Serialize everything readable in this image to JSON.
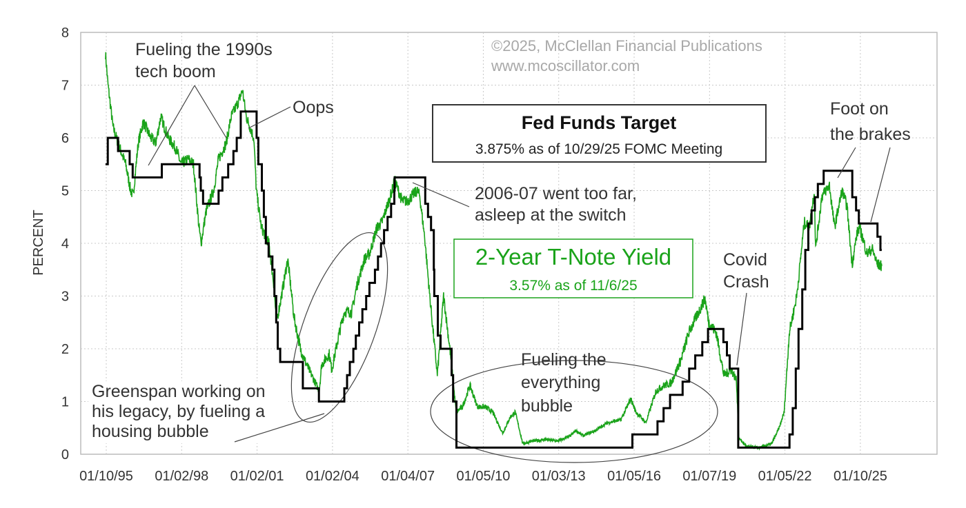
{
  "chart_data": {
    "type": "line",
    "title": "Fed Funds Target",
    "ylabel": "PERCENT",
    "xlabel": "",
    "ylim": [
      0,
      8
    ],
    "xlim": [
      1994.6,
      2028.6
    ],
    "grid": true,
    "yticks": [
      "0",
      "1",
      "2",
      "3",
      "4",
      "5",
      "6",
      "7",
      "8"
    ],
    "xticks": [
      {
        "label": "01/10/95",
        "year": 1995.03
      },
      {
        "label": "01/02/98",
        "year": 1998.03
      },
      {
        "label": "01/02/01",
        "year": 2001.03
      },
      {
        "label": "01/02/04",
        "year": 2004.03
      },
      {
        "label": "01/04/07",
        "year": 2007.03
      },
      {
        "label": "01/05/10",
        "year": 2010.03
      },
      {
        "label": "01/03/13",
        "year": 2013.03
      },
      {
        "label": "01/05/16",
        "year": 2016.03
      },
      {
        "label": "01/07/19",
        "year": 2019.03
      },
      {
        "label": "01/05/22",
        "year": 2022.03
      },
      {
        "label": "01/10/25",
        "year": 2025.03
      }
    ],
    "copyright": [
      "©2025, McClellan Financial Publications",
      "www.mcoscillator.com"
    ],
    "legend": {
      "fed": {
        "title": "Fed Funds Target",
        "subtitle": "3.875% as of 10/29/25 FOMC Meeting",
        "color": "#000000"
      },
      "yield": {
        "title": "2-Year T-Note Yield",
        "subtitle": "3.57% as of 11/6/25",
        "color": "#1aa31a"
      }
    },
    "annotations": {
      "tech_boom": [
        "Fueling the 1990s",
        "tech boom"
      ],
      "oops": "Oops",
      "too_far": [
        "2006-07 went too far,",
        "asleep at the switch"
      ],
      "covid": [
        "Covid",
        "Crash"
      ],
      "brakes": [
        "Foot on",
        "the brakes"
      ],
      "everything": [
        "Fueling the",
        "everything",
        "bubble"
      ],
      "greenspan": [
        "Greenspan working on",
        "his legacy, by fueling a",
        "housing bubble"
      ]
    },
    "series": [
      {
        "name": "Fed Funds Target",
        "color": "#000000",
        "steps": [
          [
            1995.0,
            5.5
          ],
          [
            1995.09,
            6.0
          ],
          [
            1995.5,
            5.75
          ],
          [
            1995.96,
            5.5
          ],
          [
            1996.08,
            5.25
          ],
          [
            1997.24,
            5.5
          ],
          [
            1998.74,
            5.25
          ],
          [
            1998.79,
            5.0
          ],
          [
            1998.88,
            4.75
          ],
          [
            1999.5,
            5.0
          ],
          [
            1999.65,
            5.25
          ],
          [
            1999.88,
            5.5
          ],
          [
            2000.09,
            5.75
          ],
          [
            2000.22,
            6.0
          ],
          [
            2000.38,
            6.5
          ],
          [
            2001.01,
            6.0
          ],
          [
            2001.08,
            5.5
          ],
          [
            2001.22,
            5.0
          ],
          [
            2001.3,
            4.5
          ],
          [
            2001.38,
            4.0
          ],
          [
            2001.49,
            3.75
          ],
          [
            2001.64,
            3.5
          ],
          [
            2001.72,
            3.0
          ],
          [
            2001.79,
            2.5
          ],
          [
            2001.85,
            2.0
          ],
          [
            2001.95,
            1.75
          ],
          [
            2002.85,
            1.25
          ],
          [
            2003.49,
            1.0
          ],
          [
            2004.5,
            1.25
          ],
          [
            2004.61,
            1.5
          ],
          [
            2004.72,
            1.75
          ],
          [
            2004.86,
            2.0
          ],
          [
            2004.96,
            2.25
          ],
          [
            2005.09,
            2.5
          ],
          [
            2005.22,
            2.75
          ],
          [
            2005.37,
            3.0
          ],
          [
            2005.5,
            3.25
          ],
          [
            2005.72,
            3.5
          ],
          [
            2005.84,
            3.75
          ],
          [
            2005.96,
            4.0
          ],
          [
            2006.08,
            4.25
          ],
          [
            2006.22,
            4.5
          ],
          [
            2006.36,
            4.75
          ],
          [
            2006.49,
            5.0
          ],
          [
            2006.5,
            5.25
          ],
          [
            2007.72,
            4.75
          ],
          [
            2007.83,
            4.5
          ],
          [
            2007.95,
            4.25
          ],
          [
            2008.06,
            3.5
          ],
          [
            2008.08,
            3.0
          ],
          [
            2008.22,
            2.25
          ],
          [
            2008.33,
            2.0
          ],
          [
            2008.77,
            1.5
          ],
          [
            2008.83,
            1.0
          ],
          [
            2008.96,
            0.125
          ],
          [
            2015.96,
            0.375
          ],
          [
            2016.96,
            0.625
          ],
          [
            2017.2,
            0.875
          ],
          [
            2017.46,
            1.125
          ],
          [
            2017.96,
            1.375
          ],
          [
            2018.22,
            1.625
          ],
          [
            2018.46,
            1.875
          ],
          [
            2018.74,
            2.125
          ],
          [
            2018.97,
            2.375
          ],
          [
            2019.58,
            2.125
          ],
          [
            2019.72,
            1.875
          ],
          [
            2019.83,
            1.625
          ],
          [
            2020.17,
            0.125
          ],
          [
            2022.21,
            0.375
          ],
          [
            2022.34,
            0.875
          ],
          [
            2022.46,
            1.625
          ],
          [
            2022.57,
            2.375
          ],
          [
            2022.72,
            3.125
          ],
          [
            2022.84,
            3.875
          ],
          [
            2022.96,
            4.375
          ],
          [
            2023.09,
            4.625
          ],
          [
            2023.22,
            4.875
          ],
          [
            2023.34,
            5.125
          ],
          [
            2023.57,
            5.375
          ],
          [
            2024.71,
            4.875
          ],
          [
            2024.86,
            4.625
          ],
          [
            2024.97,
            4.375
          ],
          [
            2025.71,
            4.125
          ],
          [
            2025.83,
            3.875
          ],
          [
            2025.88,
            3.875
          ]
        ]
      },
      {
        "name": "2-Year T-Note Yield",
        "color": "#1aa31a",
        "points": [
          [
            1995.0,
            7.6
          ],
          [
            1995.1,
            7.0
          ],
          [
            1995.3,
            6.2
          ],
          [
            1995.5,
            5.9
          ],
          [
            1995.8,
            5.5
          ],
          [
            1996.0,
            5.0
          ],
          [
            1996.1,
            4.9
          ],
          [
            1996.3,
            5.9
          ],
          [
            1996.5,
            6.3
          ],
          [
            1996.8,
            6.0
          ],
          [
            1997.0,
            5.9
          ],
          [
            1997.2,
            6.4
          ],
          [
            1997.5,
            6.0
          ],
          [
            1997.8,
            5.8
          ],
          [
            1998.0,
            5.5
          ],
          [
            1998.3,
            5.6
          ],
          [
            1998.5,
            5.5
          ],
          [
            1998.72,
            4.3
          ],
          [
            1998.8,
            4.0
          ],
          [
            1999.0,
            4.6
          ],
          [
            1999.3,
            5.0
          ],
          [
            1999.5,
            5.6
          ],
          [
            1999.8,
            5.9
          ],
          [
            2000.0,
            6.4
          ],
          [
            2000.3,
            6.7
          ],
          [
            2000.45,
            6.9
          ],
          [
            2000.6,
            6.4
          ],
          [
            2000.9,
            6.0
          ],
          [
            2001.0,
            5.0
          ],
          [
            2001.2,
            4.3
          ],
          [
            2001.5,
            4.0
          ],
          [
            2001.7,
            3.2
          ],
          [
            2001.8,
            2.5
          ],
          [
            2002.0,
            3.0
          ],
          [
            2002.25,
            3.7
          ],
          [
            2002.5,
            2.6
          ],
          [
            2002.75,
            2.0
          ],
          [
            2003.0,
            1.7
          ],
          [
            2003.3,
            1.4
          ],
          [
            2003.5,
            1.2
          ],
          [
            2003.6,
            1.7
          ],
          [
            2003.9,
            1.9
          ],
          [
            2004.0,
            1.6
          ],
          [
            2004.3,
            2.3
          ],
          [
            2004.5,
            2.7
          ],
          [
            2004.8,
            2.7
          ],
          [
            2005.0,
            3.2
          ],
          [
            2005.3,
            3.7
          ],
          [
            2005.5,
            3.8
          ],
          [
            2005.8,
            4.3
          ],
          [
            2006.0,
            4.4
          ],
          [
            2006.4,
            5.0
          ],
          [
            2006.5,
            5.2
          ],
          [
            2006.8,
            4.8
          ],
          [
            2007.0,
            4.8
          ],
          [
            2007.4,
            5.0
          ],
          [
            2007.5,
            4.9
          ],
          [
            2007.7,
            4.1
          ],
          [
            2007.9,
            3.0
          ],
          [
            2008.0,
            2.5
          ],
          [
            2008.2,
            1.5
          ],
          [
            2008.45,
            3.0
          ],
          [
            2008.7,
            2.0
          ],
          [
            2008.95,
            0.8
          ],
          [
            2009.2,
            0.9
          ],
          [
            2009.5,
            1.3
          ],
          [
            2009.8,
            0.9
          ],
          [
            2010.1,
            0.9
          ],
          [
            2010.4,
            0.8
          ],
          [
            2010.8,
            0.4
          ],
          [
            2011.1,
            0.7
          ],
          [
            2011.3,
            0.8
          ],
          [
            2011.6,
            0.2
          ],
          [
            2012.0,
            0.25
          ],
          [
            2012.5,
            0.28
          ],
          [
            2013.0,
            0.25
          ],
          [
            2013.5,
            0.35
          ],
          [
            2013.7,
            0.45
          ],
          [
            2014.0,
            0.35
          ],
          [
            2014.5,
            0.45
          ],
          [
            2014.8,
            0.55
          ],
          [
            2015.0,
            0.6
          ],
          [
            2015.5,
            0.65
          ],
          [
            2015.9,
            1.05
          ],
          [
            2016.1,
            0.8
          ],
          [
            2016.5,
            0.6
          ],
          [
            2016.9,
            1.2
          ],
          [
            2017.2,
            1.3
          ],
          [
            2017.5,
            1.35
          ],
          [
            2017.9,
            1.8
          ],
          [
            2018.2,
            2.3
          ],
          [
            2018.5,
            2.6
          ],
          [
            2018.85,
            2.95
          ],
          [
            2019.0,
            2.5
          ],
          [
            2019.3,
            2.3
          ],
          [
            2019.6,
            1.5
          ],
          [
            2019.9,
            1.6
          ],
          [
            2020.1,
            1.4
          ],
          [
            2020.2,
            0.3
          ],
          [
            2020.5,
            0.15
          ],
          [
            2021.0,
            0.12
          ],
          [
            2021.5,
            0.2
          ],
          [
            2021.8,
            0.5
          ],
          [
            2022.0,
            0.8
          ],
          [
            2022.2,
            2.3
          ],
          [
            2022.5,
            3.0
          ],
          [
            2022.8,
            4.4
          ],
          [
            2023.0,
            4.3
          ],
          [
            2023.2,
            5.0
          ],
          [
            2023.25,
            3.9
          ],
          [
            2023.5,
            4.9
          ],
          [
            2023.8,
            5.1
          ],
          [
            2024.0,
            4.3
          ],
          [
            2024.3,
            5.0
          ],
          [
            2024.5,
            4.7
          ],
          [
            2024.7,
            3.6
          ],
          [
            2024.9,
            4.2
          ],
          [
            2025.0,
            4.3
          ],
          [
            2025.3,
            3.8
          ],
          [
            2025.5,
            3.9
          ],
          [
            2025.7,
            3.6
          ],
          [
            2025.88,
            3.57
          ]
        ]
      }
    ]
  }
}
